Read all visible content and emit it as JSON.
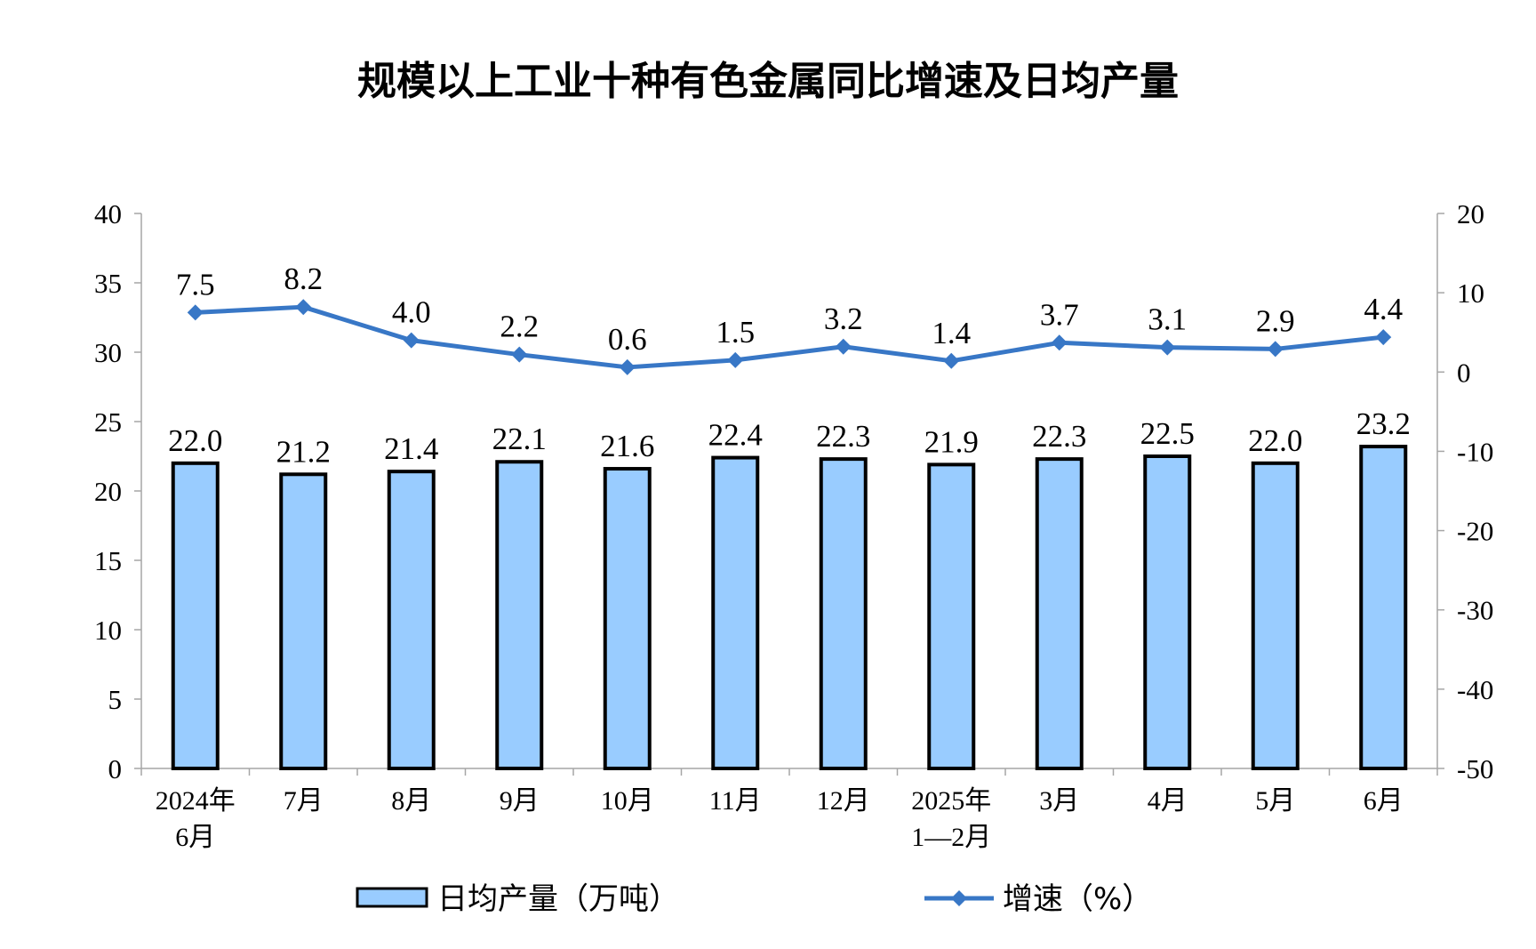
{
  "chart_data": {
    "type": "bar+line",
    "title": "规模以上工业十种有色金属同比增速及日均产量",
    "categories": [
      [
        "2024年",
        "6月"
      ],
      [
        "7月"
      ],
      [
        "8月"
      ],
      [
        "9月"
      ],
      [
        "10月"
      ],
      [
        "11月"
      ],
      [
        "12月"
      ],
      [
        "2025年",
        "1—2月"
      ],
      [
        "3月"
      ],
      [
        "4月"
      ],
      [
        "5月"
      ],
      [
        "6月"
      ]
    ],
    "series": [
      {
        "name": "日均产量（万吨）",
        "type": "bar",
        "axis": "left",
        "values": [
          22.0,
          21.2,
          21.4,
          22.1,
          21.6,
          22.4,
          22.3,
          21.9,
          22.3,
          22.5,
          22.0,
          23.2
        ],
        "labels": [
          "22.0",
          "21.2",
          "21.4",
          "22.1",
          "21.6",
          "22.4",
          "22.3",
          "21.9",
          "22.3",
          "22.5",
          "22.0",
          "23.2"
        ]
      },
      {
        "name": "增速（%）",
        "type": "line",
        "axis": "right",
        "values": [
          7.5,
          8.2,
          4.0,
          2.2,
          0.6,
          1.5,
          3.2,
          1.4,
          3.7,
          3.1,
          2.9,
          4.4
        ],
        "labels": [
          "7.5",
          "8.2",
          "4.0",
          "2.2",
          "0.6",
          "1.5",
          "3.2",
          "1.4",
          "3.7",
          "3.1",
          "2.9",
          "4.4"
        ]
      }
    ],
    "y_left": {
      "min": 0,
      "max": 40,
      "ticks": [
        0,
        5,
        10,
        15,
        20,
        25,
        30,
        35,
        40
      ]
    },
    "y_right": {
      "min": -50,
      "max": 20,
      "ticks": [
        -50,
        -40,
        -30,
        -20,
        -10,
        0,
        10,
        20
      ]
    },
    "grid": false,
    "legend_position": "bottom",
    "colors": {
      "bar_fill": "#99CCFF",
      "bar_stroke": "#000000",
      "line": "#3877C6",
      "axis": "#A6A6A6"
    }
  }
}
